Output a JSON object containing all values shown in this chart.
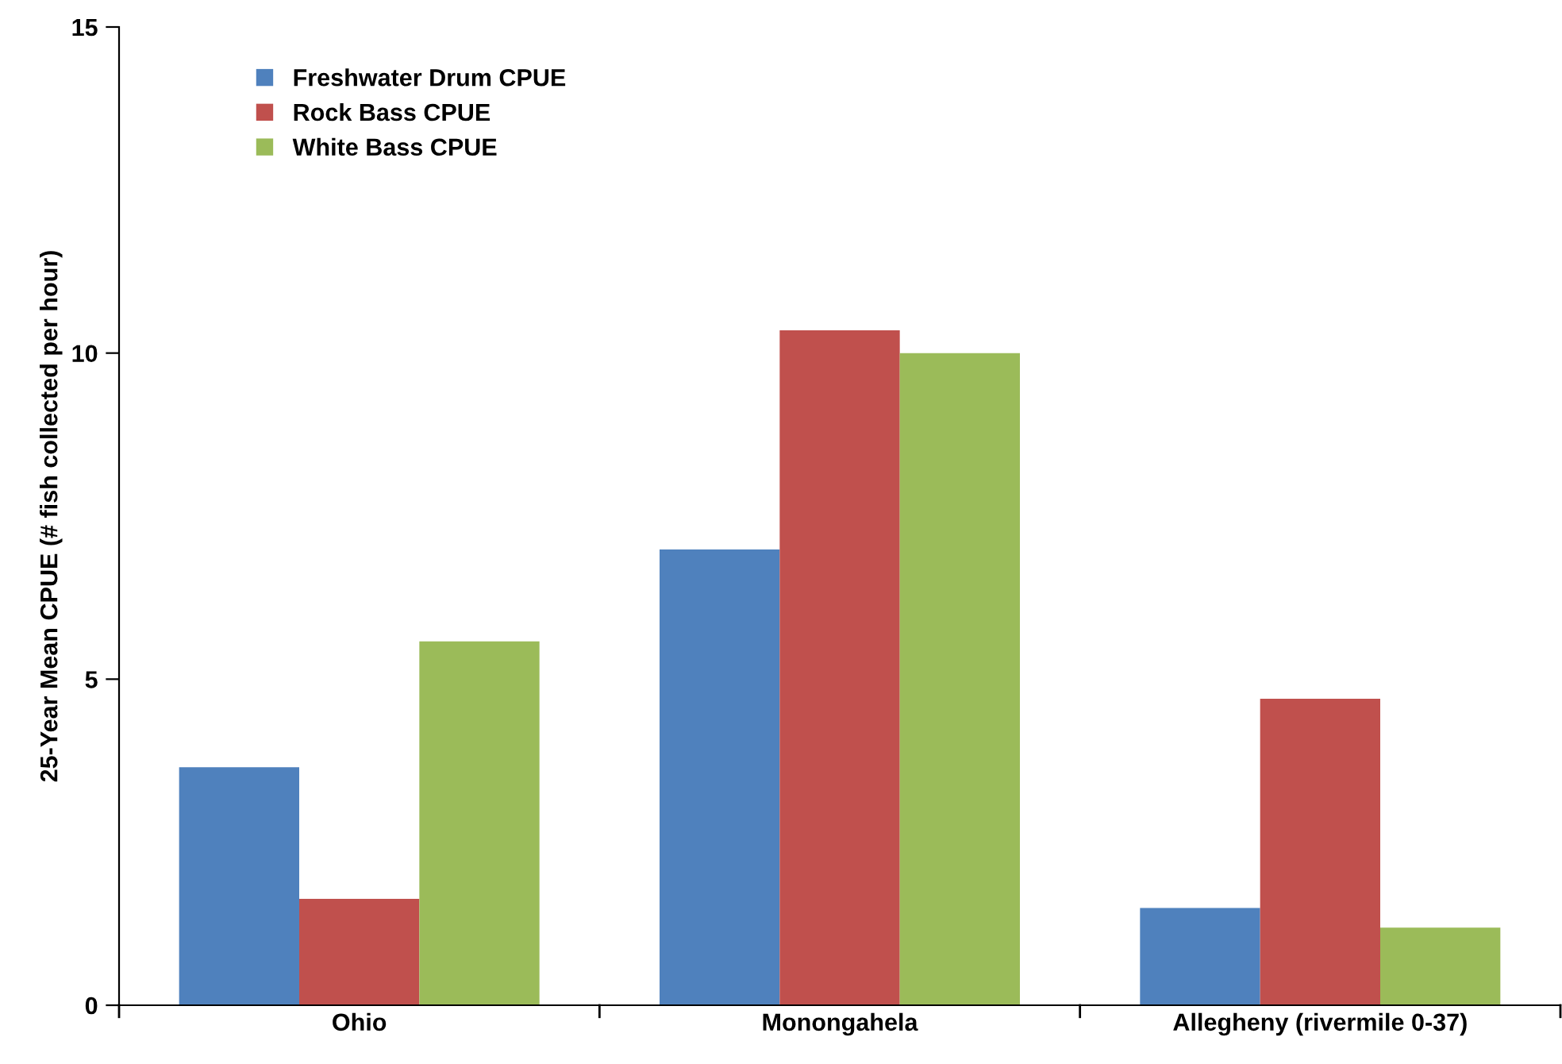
{
  "chart_data": {
    "type": "bar",
    "ylabel": "25-Year Mean CPUE (# fish collected per hour)",
    "categories": [
      "Ohio",
      "Monongahela",
      "Allegheny (rivermile 0-37)"
    ],
    "series": [
      {
        "name": "Freshwater Drum CPUE",
        "color": "#4f81bd",
        "values": [
          3.65,
          6.99,
          1.49
        ]
      },
      {
        "name": "Rock Bass CPUE",
        "color": "#c0504d",
        "values": [
          1.63,
          10.35,
          4.7
        ]
      },
      {
        "name": "White Bass CPUE",
        "color": "#9bbb59",
        "values": [
          5.58,
          10.0,
          1.19
        ]
      }
    ],
    "ylim": [
      0,
      15
    ],
    "yticks": [
      0,
      5,
      10,
      15
    ],
    "grid": false,
    "legend": "top left"
  }
}
